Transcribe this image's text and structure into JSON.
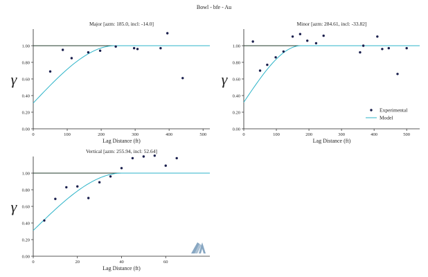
{
  "suptitle": "Bowl - bfe - Au",
  "legend": {
    "experimental": "Experimental",
    "model": "Model"
  },
  "colors": {
    "points": "#1a1f4d",
    "model": "#2bb3c8",
    "sill": "#1f3a28",
    "axis": "#222222",
    "watermark": "#3a6d9a"
  },
  "watermark_icon": "logo-icon",
  "chart_data": [
    {
      "type": "scatter",
      "title": "Major [azm: 185.0, incl: -14.0]",
      "xlabel": "Lag Distance (ft)",
      "ylabel": "γ",
      "xlim": [
        0,
        520
      ],
      "ylim": [
        0,
        1.2
      ],
      "xticks": [
        0,
        100,
        200,
        300,
        400,
        500
      ],
      "yticks": [
        0.0,
        0.2,
        0.4,
        0.6,
        0.8,
        1.0
      ],
      "sill": 1.0,
      "model": {
        "range": 240,
        "nugget": 0.31
      },
      "experimental": [
        [
          50,
          0.69
        ],
        [
          87,
          0.95
        ],
        [
          113,
          0.85
        ],
        [
          162,
          0.92
        ],
        [
          197,
          0.94
        ],
        [
          243,
          0.99
        ],
        [
          297,
          0.97
        ],
        [
          307,
          0.96
        ],
        [
          375,
          0.97
        ],
        [
          395,
          1.15
        ],
        [
          440,
          0.61
        ]
      ]
    },
    {
      "type": "scatter",
      "title": "Minor [azm: 284.61, incl: -33.82]",
      "xlabel": "Lag Distance (ft)",
      "ylabel": "γ",
      "xlim": [
        0,
        540
      ],
      "ylim": [
        0,
        1.2
      ],
      "xticks": [
        0,
        100,
        200,
        300,
        400,
        500
      ],
      "yticks": [
        0.0,
        0.2,
        0.4,
        0.6,
        0.8,
        1.0
      ],
      "sill": 1.0,
      "model": {
        "range": 175,
        "nugget": 0.32
      },
      "experimental": [
        [
          28,
          1.05
        ],
        [
          50,
          0.7
        ],
        [
          72,
          0.77
        ],
        [
          98,
          0.86
        ],
        [
          122,
          0.93
        ],
        [
          150,
          1.11
        ],
        [
          173,
          1.14
        ],
        [
          195,
          1.06
        ],
        [
          222,
          1.03
        ],
        [
          245,
          1.12
        ],
        [
          357,
          0.92
        ],
        [
          367,
          1.0
        ],
        [
          410,
          1.11
        ],
        [
          425,
          0.96
        ],
        [
          445,
          0.97
        ],
        [
          472,
          0.66
        ],
        [
          500,
          0.97
        ]
      ]
    },
    {
      "type": "scatter",
      "title": "Vertical [azm: 255.94, incl: 52.64]",
      "xlabel": "Lag Distance (ft)",
      "ylabel": "γ",
      "xlim": [
        0,
        80
      ],
      "ylim": [
        0,
        1.2
      ],
      "xticks": [
        0,
        20,
        40,
        60
      ],
      "yticks": [
        0.0,
        0.2,
        0.4,
        0.6,
        0.8,
        1.0
      ],
      "sill": 1.0,
      "model": {
        "range": 40,
        "nugget": 0.31
      },
      "experimental": [
        [
          5,
          0.43
        ],
        [
          10,
          0.69
        ],
        [
          15,
          0.83
        ],
        [
          20,
          0.84
        ],
        [
          25,
          0.7
        ],
        [
          30,
          0.89
        ],
        [
          35,
          0.96
        ],
        [
          40,
          1.06
        ],
        [
          45,
          1.18
        ],
        [
          50,
          1.2
        ],
        [
          55,
          1.21
        ],
        [
          60,
          1.09
        ],
        [
          65,
          1.18
        ]
      ]
    }
  ]
}
